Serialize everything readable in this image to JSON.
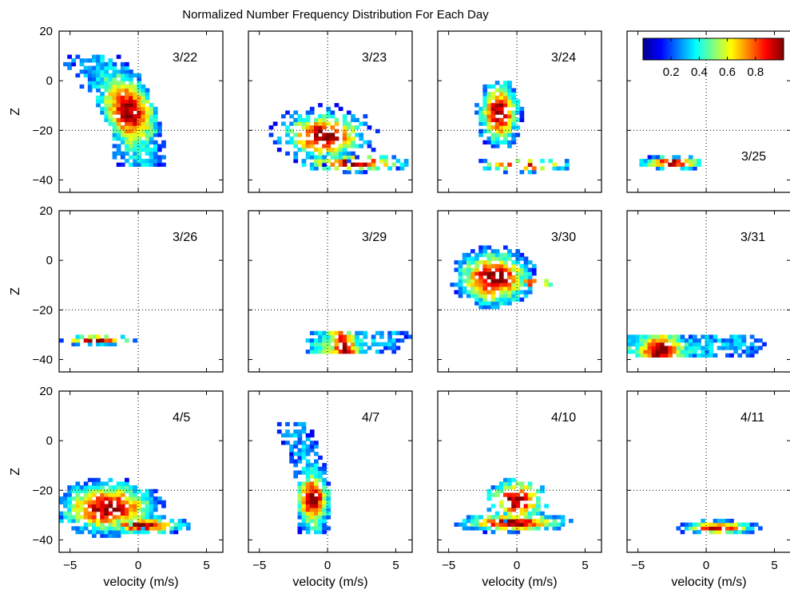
{
  "chart_data": {
    "type": "heatmap",
    "title": "Normalized Number Frequency Distribution For Each Day",
    "xlabel": "velocity (m/s)",
    "ylabel": "Z",
    "xlim": [
      -5.8,
      6.2
    ],
    "ylim": [
      -45,
      20
    ],
    "xticks": [
      -5,
      0,
      5
    ],
    "yticks": [
      20,
      0,
      -20,
      -40
    ],
    "xtick_labels": [
      "−5",
      "0",
      "5"
    ],
    "ytick_labels": [
      "20",
      "0",
      "−20",
      "−40"
    ],
    "reference_lines": {
      "x": 0,
      "y": -20,
      "style": "dotted"
    },
    "grid": false,
    "colormap": "jet",
    "colorbar": {
      "range": [
        0,
        1
      ],
      "tick_values": [
        0.2,
        0.4,
        0.6,
        0.8
      ],
      "tick_labels": [
        "0.2",
        "0.4",
        "0.6",
        "0.8"
      ],
      "placement": "inside top-right of the 3/25 panel"
    },
    "bin_size": {
      "velocity": 0.3,
      "z": 1.5
    },
    "panel_layout": {
      "rows": 3,
      "cols": 4
    },
    "panels": [
      {
        "label": "3/22",
        "clusters": [
          {
            "type": "band",
            "points": [
              [
                -3.5,
                8
              ],
              [
                -1.6,
                -2
              ],
              [
                -0.5,
                -14
              ],
              [
                0.2,
                -32
              ]
            ],
            "halfWidth": 1.9,
            "peakPos": 0.55,
            "peakSpread": 0.18,
            "sigmaY": 2.2,
            "extent": 1.7,
            "density": 0.92
          }
        ]
      },
      {
        "label": "3/23",
        "clusters": [
          {
            "type": "blob",
            "cx": -0.3,
            "cz": -22,
            "sx": 1.8,
            "sz": 5.5,
            "extent": 2.3,
            "density": 0.55
          },
          {
            "type": "blob",
            "cx": 2,
            "cz": -33,
            "sx": 2.2,
            "sz": 2,
            "extent": 2,
            "density": 0.62
          }
        ]
      },
      {
        "label": "3/24",
        "clusters": [
          {
            "type": "blob",
            "cx": -1.3,
            "cz": -13,
            "sx": 0.85,
            "sz": 7.5,
            "extent": 2,
            "density": 0.85
          },
          {
            "type": "blob",
            "cx": 0.5,
            "cz": -34,
            "sx": 2,
            "sz": 1.5,
            "extent": 2,
            "density": 0.4
          }
        ]
      },
      {
        "label": "3/25",
        "clusters": [
          {
            "type": "blob",
            "cx": -2.5,
            "cz": -33,
            "sx": 1.3,
            "sz": 1.5,
            "extent": 2,
            "density": 0.72
          }
        ]
      },
      {
        "label": "3/26",
        "clusters": [
          {
            "type": "blob",
            "cx": -3,
            "cz": -32,
            "sx": 1.5,
            "sz": 1.1,
            "extent": 2,
            "density": 0.72
          }
        ]
      },
      {
        "label": "3/29",
        "clusters": [
          {
            "type": "band",
            "points": [
              [
                0.5,
                -36
              ],
              [
                2,
                -33
              ],
              [
                4,
                -30
              ]
            ],
            "halfWidth": 2.2,
            "peakPos": 0.2,
            "peakSpread": 0.15,
            "sigmaY": 1.7,
            "extent": 2,
            "density": 0.9
          }
        ]
      },
      {
        "label": "3/30",
        "clusters": [
          {
            "type": "blob",
            "cx": -1.7,
            "cz": -7,
            "sx": 1.6,
            "sz": 6.5,
            "extent": 2,
            "density": 0.85
          },
          {
            "type": "blob",
            "cx": 1.3,
            "cz": -9,
            "sx": 0.9,
            "sz": 1.2,
            "extent": 1.8,
            "density": 0.55
          }
        ]
      },
      {
        "label": "3/31",
        "clusters": [
          {
            "type": "band",
            "points": [
              [
                -5,
                -37
              ],
              [
                0,
                -35
              ],
              [
                3,
                -32
              ]
            ],
            "halfWidth": 1.7,
            "peakPos": 0.2,
            "peakSpread": 0.12,
            "sigmaY": 1.4,
            "extent": 2,
            "density": 0.9
          }
        ]
      },
      {
        "label": "4/5",
        "clusters": [
          {
            "type": "blob",
            "cx": -2.2,
            "cz": -27,
            "sx": 2.1,
            "sz": 6,
            "extent": 2,
            "density": 0.85
          },
          {
            "type": "blob",
            "cx": 0.3,
            "cz": -34,
            "sx": 1.8,
            "sz": 2,
            "extent": 2,
            "density": 0.8
          }
        ]
      },
      {
        "label": "4/7",
        "clusters": [
          {
            "type": "band",
            "points": [
              [
                -2.5,
                5
              ],
              [
                -1.2,
                -10
              ],
              [
                -1,
                -35
              ]
            ],
            "halfWidth": 1.2,
            "peakPos": 0.72,
            "peakSpread": 0.14,
            "sigmaY": 2.5,
            "extent": 1.7,
            "density": 0.9
          }
        ]
      },
      {
        "label": "4/10",
        "clusters": [
          {
            "type": "blob",
            "cx": -0.3,
            "cz": -33,
            "sx": 2.2,
            "sz": 2.2,
            "extent": 2,
            "density": 0.85
          },
          {
            "type": "blob",
            "cx": 0,
            "cz": -24,
            "sx": 1.3,
            "sz": 5,
            "extent": 1.8,
            "density": 0.5
          }
        ]
      },
      {
        "label": "4/11",
        "clusters": [
          {
            "type": "blob",
            "cx": 0.8,
            "cz": -35,
            "sx": 1.6,
            "sz": 1.5,
            "extent": 2,
            "density": 0.88
          }
        ]
      }
    ]
  }
}
